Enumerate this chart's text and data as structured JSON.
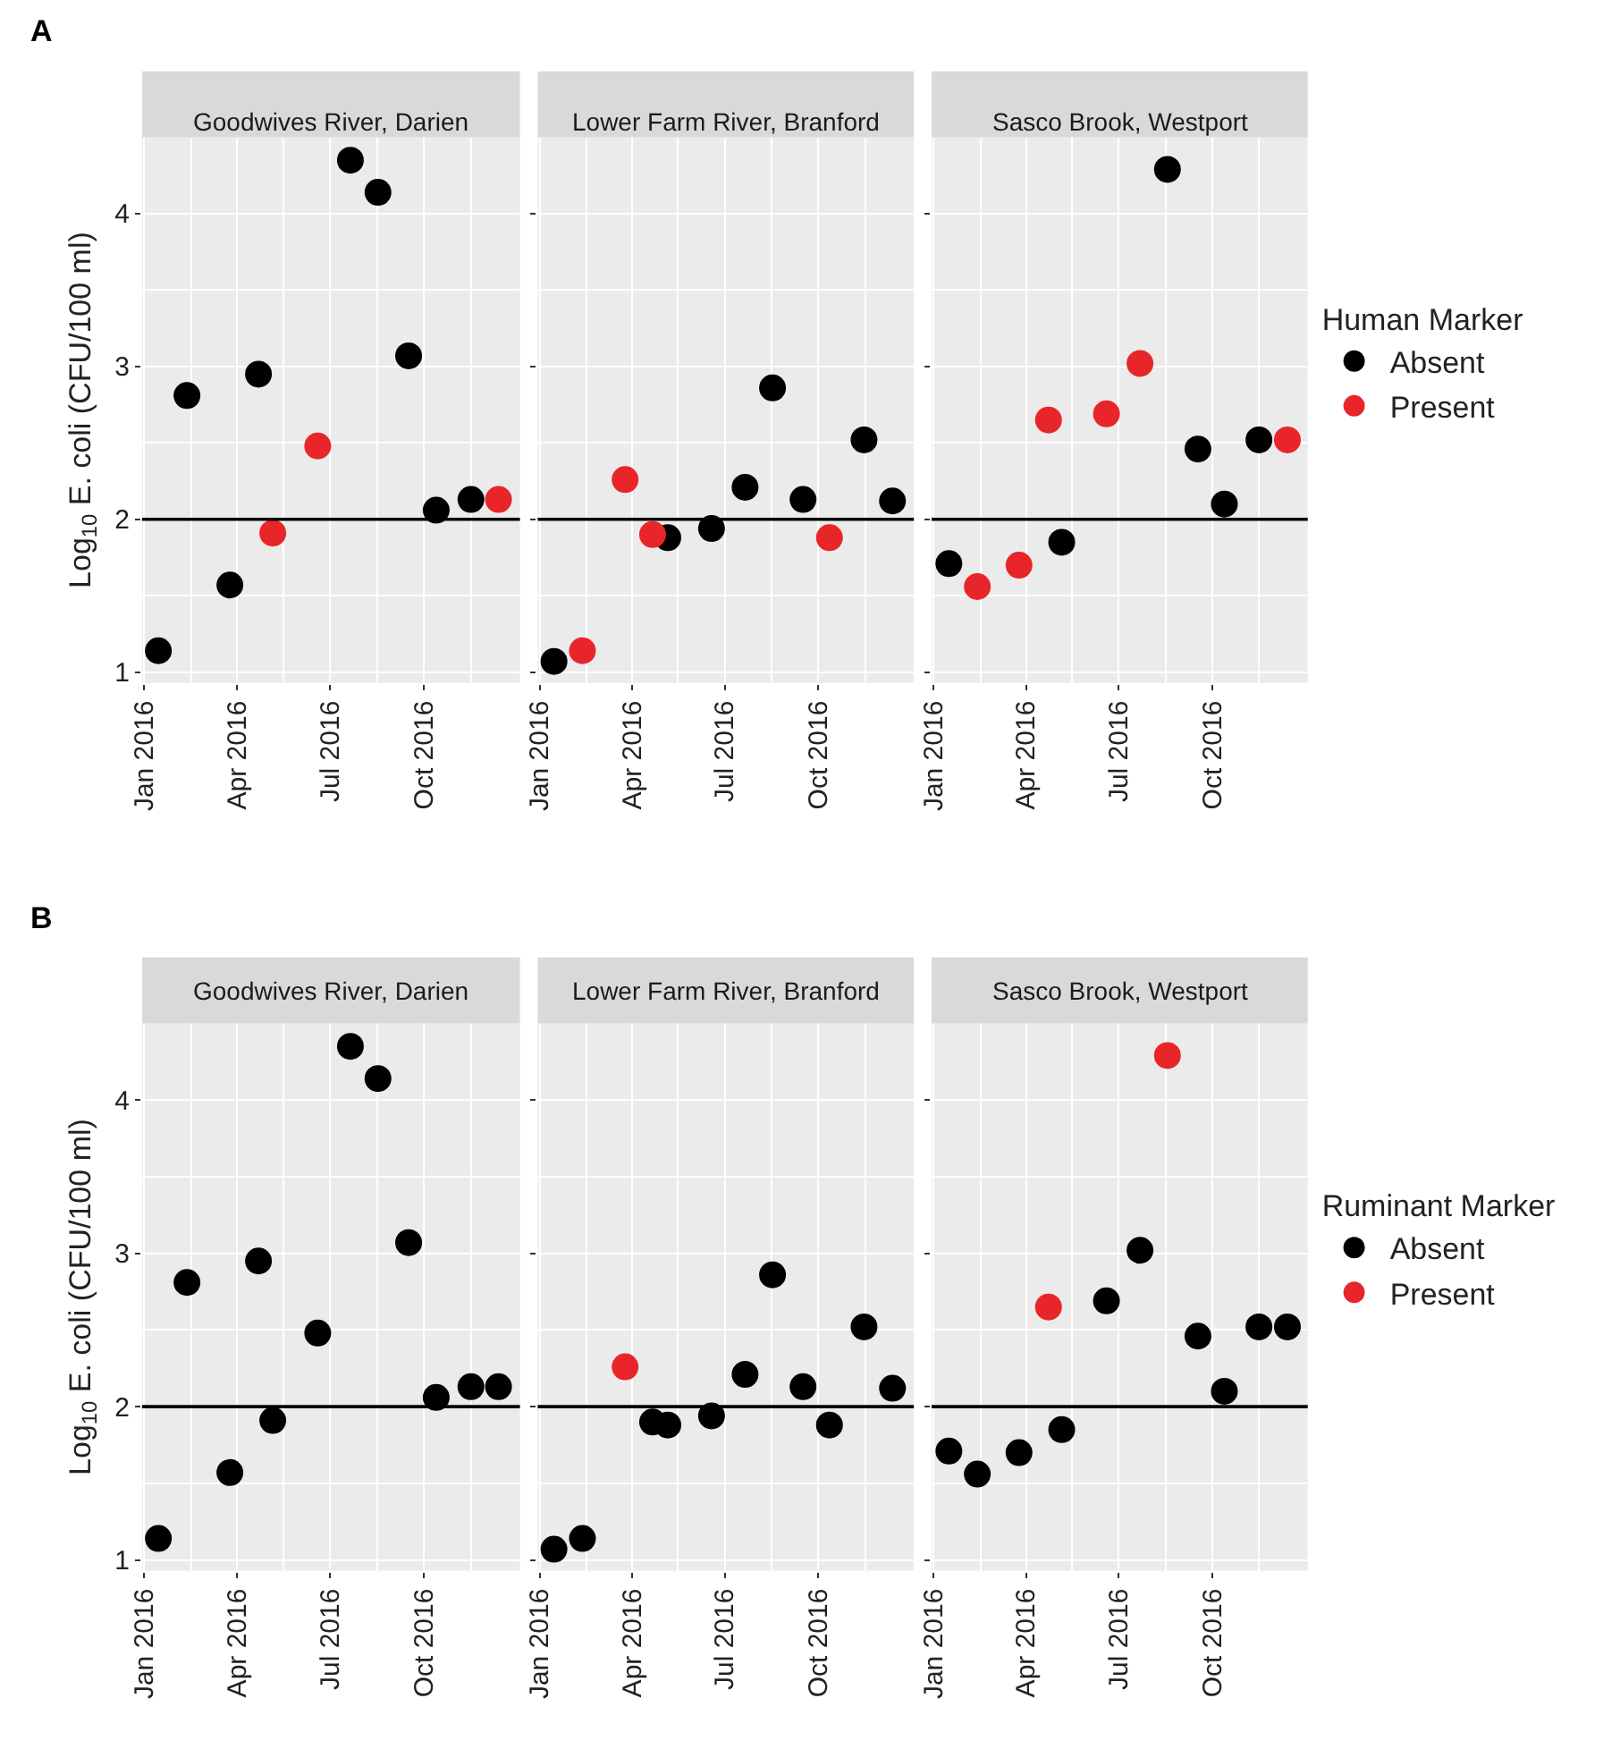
{
  "chart_data": [
    {
      "type": "scatter",
      "title": "Goodwives River, Darien",
      "ylabel": "Log$_{10}$ E. coli (CFU/100 ml)",
      "annotations": [
        "A"
      ],
      "marker": "circle",
      "grid": true,
      "xlim": [
        "2015-12-30",
        "2017-01-03"
      ],
      "xticks": [
        {
          "value": "2016-01-01",
          "label": "Jan 2016"
        },
        {
          "value": "2016-04-01",
          "label": "Apr 2016"
        },
        {
          "value": "2016-07-01",
          "label": "Jul 2016"
        },
        {
          "value": "2016-10-01",
          "label": "Oct 2016"
        }
      ],
      "ylim": [
        0.93,
        4.5
      ],
      "yticks": [
        1,
        2,
        3,
        4
      ],
      "ref_lines": [
        {
          "axis": "y",
          "value": 2,
          "color": "#000000"
        }
      ],
      "series": [
        {
          "color": "#000000",
          "x": [
            "2016-01-15",
            "2016-02-12",
            "2016-03-25",
            "2016-04-22",
            "2016-07-21",
            "2016-08-17",
            "2016-09-16",
            "2016-10-13",
            "2016-11-16"
          ],
          "values": [
            1.14,
            2.81,
            1.57,
            2.95,
            4.35,
            4.14,
            3.07,
            2.06,
            2.13
          ]
        },
        {
          "color": "#e8262a",
          "x": [
            "2016-05-06",
            "2016-06-19",
            "2016-12-13"
          ],
          "values": [
            1.91,
            2.48,
            2.13
          ]
        }
      ]
    },
    {
      "type": "scatter",
      "title": "Lower Farm River, Branford",
      "marker": "circle",
      "grid": true,
      "tick_labels": "x",
      "xlim": [
        "2015-12-30",
        "2017-01-03"
      ],
      "xticks": [
        {
          "value": "2016-01-01",
          "label": "Jan 2016"
        },
        {
          "value": "2016-04-01",
          "label": "Apr 2016"
        },
        {
          "value": "2016-07-01",
          "label": "Jul 2016"
        },
        {
          "value": "2016-10-01",
          "label": "Oct 2016"
        }
      ],
      "ylim": [
        0.93,
        4.5
      ],
      "yticks": [
        1,
        2,
        3,
        4
      ],
      "ref_lines": [
        {
          "axis": "y",
          "value": 2,
          "color": "#000000"
        }
      ],
      "series": [
        {
          "color": "#000000",
          "x": [
            "2016-01-15",
            "2016-05-06",
            "2016-06-18",
            "2016-07-21",
            "2016-08-17",
            "2016-09-16",
            "2016-11-15",
            "2016-12-13"
          ],
          "values": [
            1.07,
            1.88,
            1.94,
            2.21,
            2.86,
            2.13,
            2.52,
            2.12
          ]
        },
        {
          "color": "#e8262a",
          "x": [
            "2016-02-12",
            "2016-03-25",
            "2016-04-21",
            "2016-10-12"
          ],
          "values": [
            1.14,
            2.26,
            1.9,
            1.88
          ]
        }
      ]
    },
    {
      "type": "scatter",
      "title": "Sasco Brook, Westport",
      "legend_title": "Human Marker",
      "legend": "right",
      "marker": "circle",
      "grid": true,
      "tick_labels": "x",
      "xlim": [
        "2015-12-30",
        "2017-01-03"
      ],
      "xticks": [
        {
          "value": "2016-01-01",
          "label": "Jan 2016"
        },
        {
          "value": "2016-04-01",
          "label": "Apr 2016"
        },
        {
          "value": "2016-07-01",
          "label": "Jul 2016"
        },
        {
          "value": "2016-10-01",
          "label": "Oct 2016"
        }
      ],
      "ylim": [
        0.93,
        4.5
      ],
      "yticks": [
        1,
        2,
        3,
        4
      ],
      "ref_lines": [
        {
          "axis": "y",
          "value": 2,
          "color": "#000000"
        }
      ],
      "series": [
        {
          "name": "Absent",
          "color": "#000000",
          "x": [
            "2016-01-16",
            "2016-05-06",
            "2016-08-18",
            "2016-09-17",
            "2016-10-13",
            "2016-11-16"
          ],
          "values": [
            1.71,
            1.85,
            4.29,
            2.46,
            2.1,
            2.52
          ]
        },
        {
          "name": "Present",
          "color": "#e8262a",
          "x": [
            "2016-02-13",
            "2016-03-25",
            "2016-04-23",
            "2016-06-19",
            "2016-07-22",
            "2016-12-14"
          ],
          "values": [
            1.56,
            1.7,
            2.65,
            2.69,
            3.02,
            2.52
          ]
        }
      ]
    },
    {
      "type": "scatter",
      "title": "Goodwives River, Darien",
      "ylabel": "Log$_{10}$ E. coli (CFU/100 ml)",
      "annotations": [
        "B"
      ],
      "marker": "circle",
      "grid": true,
      "xlim": [
        "2015-12-30",
        "2017-01-03"
      ],
      "xticks": [
        {
          "value": "2016-01-01",
          "label": "Jan 2016"
        },
        {
          "value": "2016-04-01",
          "label": "Apr 2016"
        },
        {
          "value": "2016-07-01",
          "label": "Jul 2016"
        },
        {
          "value": "2016-10-01",
          "label": "Oct 2016"
        }
      ],
      "ylim": [
        0.93,
        4.5
      ],
      "yticks": [
        1,
        2,
        3,
        4
      ],
      "ref_lines": [
        {
          "axis": "y",
          "value": 2,
          "color": "#000000"
        }
      ],
      "series": [
        {
          "color": "#000000",
          "x": [
            "2016-01-15",
            "2016-02-12",
            "2016-03-25",
            "2016-04-22",
            "2016-05-06",
            "2016-06-19",
            "2016-07-21",
            "2016-08-17",
            "2016-09-16",
            "2016-10-13",
            "2016-11-16",
            "2016-12-13"
          ],
          "values": [
            1.14,
            2.81,
            1.57,
            2.95,
            1.91,
            2.48,
            4.35,
            4.14,
            3.07,
            2.06,
            2.13,
            2.13
          ]
        }
      ]
    },
    {
      "type": "scatter",
      "title": "Lower Farm River, Branford",
      "marker": "circle",
      "grid": true,
      "tick_labels": "x",
      "xlim": [
        "2015-12-30",
        "2017-01-03"
      ],
      "xticks": [
        {
          "value": "2016-01-01",
          "label": "Jan 2016"
        },
        {
          "value": "2016-04-01",
          "label": "Apr 2016"
        },
        {
          "value": "2016-07-01",
          "label": "Jul 2016"
        },
        {
          "value": "2016-10-01",
          "label": "Oct 2016"
        }
      ],
      "ylim": [
        0.93,
        4.5
      ],
      "yticks": [
        1,
        2,
        3,
        4
      ],
      "ref_lines": [
        {
          "axis": "y",
          "value": 2,
          "color": "#000000"
        }
      ],
      "series": [
        {
          "color": "#000000",
          "x": [
            "2016-01-15",
            "2016-02-12",
            "2016-04-21",
            "2016-05-06",
            "2016-06-18",
            "2016-07-21",
            "2016-08-17",
            "2016-09-16",
            "2016-10-12",
            "2016-11-15",
            "2016-12-13"
          ],
          "values": [
            1.07,
            1.14,
            1.9,
            1.88,
            1.94,
            2.21,
            2.86,
            2.13,
            1.88,
            2.52,
            2.12
          ]
        },
        {
          "color": "#e8262a",
          "x": [
            "2016-03-25"
          ],
          "values": [
            2.26
          ]
        }
      ]
    },
    {
      "type": "scatter",
      "title": "Sasco Brook, Westport",
      "legend_title": "Ruminant Marker",
      "legend": "right",
      "marker": "circle",
      "grid": true,
      "tick_labels": "x",
      "xlim": [
        "2015-12-30",
        "2017-01-03"
      ],
      "xticks": [
        {
          "value": "2016-01-01",
          "label": "Jan 2016"
        },
        {
          "value": "2016-04-01",
          "label": "Apr 2016"
        },
        {
          "value": "2016-07-01",
          "label": "Jul 2016"
        },
        {
          "value": "2016-10-01",
          "label": "Oct 2016"
        }
      ],
      "ylim": [
        0.93,
        4.5
      ],
      "yticks": [
        1,
        2,
        3,
        4
      ],
      "ref_lines": [
        {
          "axis": "y",
          "value": 2,
          "color": "#000000"
        }
      ],
      "series": [
        {
          "name": "Absent",
          "color": "#000000",
          "x": [
            "2016-01-16",
            "2016-02-13",
            "2016-03-25",
            "2016-05-06",
            "2016-06-19",
            "2016-07-22",
            "2016-09-17",
            "2016-10-13",
            "2016-11-16",
            "2016-12-14"
          ],
          "values": [
            1.71,
            1.56,
            1.7,
            1.85,
            2.69,
            3.02,
            2.46,
            2.1,
            2.52,
            2.52
          ]
        },
        {
          "name": "Present",
          "color": "#e8262a",
          "x": [
            "2016-04-23",
            "2016-08-18"
          ],
          "values": [
            2.65,
            4.29
          ]
        }
      ]
    }
  ]
}
